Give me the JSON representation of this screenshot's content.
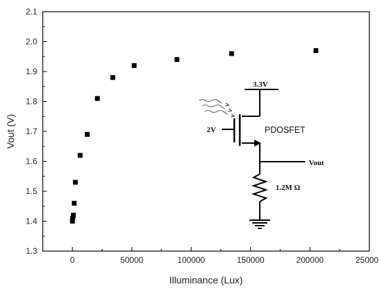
{
  "chart_data": {
    "type": "scatter",
    "title": "",
    "xlabel": "Illuminance (Lux)",
    "ylabel": "Vout (V)",
    "xlim": [
      -25000,
      250000
    ],
    "ylim": [
      1.3,
      2.1
    ],
    "x_ticks": [
      "0",
      "50000",
      "100000",
      "150000",
      "200000",
      "250000"
    ],
    "y_ticks": [
      "1.3",
      "1.4",
      "1.5",
      "1.6",
      "1.7",
      "1.8",
      "1.9",
      "2.0",
      "2.1"
    ],
    "grid": false,
    "marker": "square",
    "marker_color": "#000000",
    "series": [
      {
        "x": [
          0,
          200,
          800,
          1500,
          2500,
          6500,
          12500,
          21000,
          34000,
          52000,
          88000,
          134000,
          205000
        ],
        "y": [
          1.4,
          1.41,
          1.42,
          1.46,
          1.53,
          1.62,
          1.69,
          1.81,
          1.88,
          1.92,
          1.94,
          1.96,
          1.97
        ]
      }
    ]
  },
  "inset": {
    "supply_label": "3.3V",
    "gate_label": "2V",
    "device_label": "PDOSFET",
    "output_label": "Vout",
    "resistor_label": "1.2M Ω"
  }
}
